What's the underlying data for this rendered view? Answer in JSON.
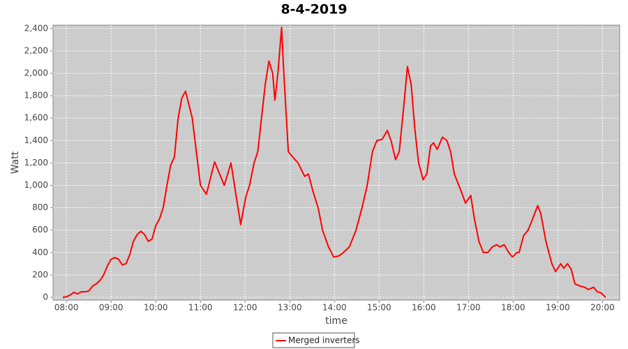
{
  "chart_data": {
    "type": "line",
    "title": "8-4-2019",
    "x_label": "time",
    "y_label": "Watt",
    "x": [
      "07:55",
      "08:00",
      "08:05",
      "08:10",
      "08:15",
      "08:20",
      "08:25",
      "08:30",
      "08:35",
      "08:40",
      "08:45",
      "08:50",
      "08:55",
      "09:00",
      "09:05",
      "09:10",
      "09:15",
      "09:20",
      "09:25",
      "09:30",
      "09:35",
      "09:40",
      "09:45",
      "09:50",
      "09:55",
      "10:00",
      "10:05",
      "10:10",
      "10:15",
      "10:20",
      "10:25",
      "10:30",
      "10:35",
      "10:40",
      "10:49",
      "11:00",
      "11:08",
      "11:19",
      "11:32",
      "11:41",
      "11:54",
      "12:01",
      "12:06",
      "12:12",
      "12:17",
      "12:22",
      "12:27",
      "12:32",
      "12:37",
      "12:40",
      "12:44",
      "12:49",
      "12:52",
      "12:58",
      "13:03",
      "13:11",
      "13:20",
      "13:25",
      "13:31",
      "13:38",
      "13:44",
      "13:52",
      "13:59",
      "14:06",
      "14:12",
      "14:20",
      "14:29",
      "14:37",
      "14:44",
      "14:51",
      "14:57",
      "15:04",
      "15:11",
      "15:16",
      "15:22",
      "15:27",
      "15:33",
      "15:38",
      "15:43",
      "15:48",
      "15:53",
      "15:59",
      "16:04",
      "16:09",
      "16:13",
      "16:18",
      "16:25",
      "16:31",
      "16:36",
      "16:41",
      "16:50",
      "16:56",
      "17:03",
      "17:08",
      "17:14",
      "17:20",
      "17:26",
      "17:32",
      "17:38",
      "17:42",
      "17:48",
      "17:54",
      "17:59",
      "18:05",
      "18:08",
      "18:14",
      "18:20",
      "18:25",
      "18:33",
      "18:37",
      "18:44",
      "18:52",
      "18:57",
      "19:04",
      "19:08",
      "19:13",
      "19:18",
      "19:23",
      "19:30",
      "19:36",
      "19:41",
      "19:48",
      "19:53",
      "19:58",
      "20:04"
    ],
    "series": [
      {
        "name": "Merged inverters",
        "color": "#ff0000",
        "values": [
          0,
          5,
          20,
          45,
          30,
          50,
          50,
          55,
          100,
          120,
          150,
          200,
          280,
          340,
          355,
          340,
          290,
          300,
          380,
          500,
          560,
          590,
          560,
          500,
          520,
          640,
          700,
          800,
          1000,
          1180,
          1250,
          1600,
          1780,
          1840,
          1600,
          1000,
          920,
          1210,
          1000,
          1200,
          650,
          900,
          1000,
          1200,
          1300,
          1600,
          1900,
          2110,
          2000,
          1760,
          2000,
          2410,
          2000,
          1300,
          1260,
          1200,
          1080,
          1100,
          950,
          800,
          600,
          450,
          360,
          370,
          400,
          450,
          600,
          800,
          1000,
          1300,
          1400,
          1410,
          1490,
          1400,
          1230,
          1300,
          1700,
          2060,
          1900,
          1500,
          1200,
          1050,
          1100,
          1350,
          1380,
          1320,
          1430,
          1400,
          1300,
          1100,
          950,
          840,
          910,
          700,
          500,
          400,
          400,
          450,
          470,
          450,
          470,
          400,
          360,
          400,
          400,
          550,
          600,
          680,
          820,
          750,
          500,
          300,
          230,
          300,
          260,
          300,
          250,
          120,
          100,
          90,
          70,
          90,
          50,
          40,
          0
        ]
      }
    ],
    "xlim": [
      "07:42",
      "20:23"
    ],
    "xticks": [
      "08:00",
      "09:00",
      "10:00",
      "11:00",
      "12:00",
      "13:00",
      "14:00",
      "15:00",
      "16:00",
      "17:00",
      "18:00",
      "19:00",
      "20:00"
    ],
    "ylim": [
      -25,
      2430
    ],
    "yticks": [
      0,
      200,
      400,
      600,
      800,
      {
        "value": 1000,
        "label": "1,000"
      },
      {
        "value": 1200,
        "label": "1,200"
      },
      {
        "value": 1400,
        "label": "1,400"
      },
      {
        "value": 1600,
        "label": "1,600"
      },
      {
        "value": 1800,
        "label": "1,800"
      },
      {
        "value": 2000,
        "label": "2,000"
      },
      {
        "value": 2200,
        "label": "2,200"
      },
      {
        "value": 2400,
        "label": "2,400"
      }
    ],
    "grid": true,
    "legend": "bottom"
  }
}
